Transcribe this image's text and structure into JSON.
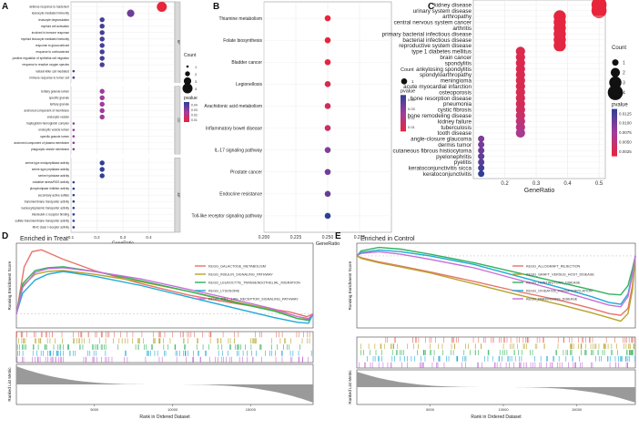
{
  "figure": {
    "panel_letters": [
      "A",
      "B",
      "C",
      "D",
      "E"
    ]
  },
  "chart_data": [
    {
      "id": "A",
      "type": "scatter",
      "kind": "dotplot",
      "xlabel": "GeneRatio",
      "xlim": [
        0.1,
        0.5
      ],
      "xticks": [
        "0.1",
        "0.2",
        "0.3",
        "0.4"
      ],
      "facets": [
        {
          "name": "BP",
          "terms": [
            {
              "label": "defense response to bacterium",
              "x": 0.45,
              "count": 4,
              "p": 0.002
            },
            {
              "label": "leukocyte mediated immunity",
              "x": 0.33,
              "count": 3,
              "p": 0.03
            },
            {
              "label": "leukocyte degranulation",
              "x": 0.22,
              "count": 2,
              "p": 0.036
            },
            {
              "label": "myeloid cell activation",
              "x": 0.22,
              "count": 2,
              "p": 0.036
            },
            {
              "label": "involved in immune response",
              "x": 0.22,
              "count": 2,
              "p": 0.036
            },
            {
              "label": "myeloid leukocyte mediated immunity",
              "x": 0.22,
              "count": 2,
              "p": 0.036
            },
            {
              "label": "response to glucocorticoid",
              "x": 0.22,
              "count": 2,
              "p": 0.036
            },
            {
              "label": "response to corticosteroid",
              "x": 0.22,
              "count": 2,
              "p": 0.036
            },
            {
              "label": "positive regulation of epithelial cell migration",
              "x": 0.22,
              "count": 2,
              "p": 0.036
            },
            {
              "label": "response to reactive oxygen species",
              "x": 0.22,
              "count": 2,
              "p": 0.036
            },
            {
              "label": "natural killer cell mediated",
              "x": 0.11,
              "count": 1,
              "p": 0.036
            },
            {
              "label": "immune response to tumor cell",
              "x": 0.11,
              "count": 1,
              "p": 0.036
            }
          ]
        },
        {
          "name": "CC",
          "terms": [
            {
              "label": "tertiary granule lumen",
              "x": 0.22,
              "count": 2,
              "p": 0.022
            },
            {
              "label": "specific granule",
              "x": 0.22,
              "count": 2,
              "p": 0.022
            },
            {
              "label": "tertiary granule",
              "x": 0.22,
              "count": 2,
              "p": 0.022
            },
            {
              "label": "anchored component of membrane",
              "x": 0.22,
              "count": 2,
              "p": 0.022
            },
            {
              "label": "endocytic vesicle",
              "x": 0.22,
              "count": 2,
              "p": 0.022
            },
            {
              "label": "haptoglobin-hemoglobin complex",
              "x": 0.11,
              "count": 1,
              "p": 0.024
            },
            {
              "label": "endocytic vesicle lumen",
              "x": 0.11,
              "count": 1,
              "p": 0.024
            },
            {
              "label": "specific granule lumen",
              "x": 0.11,
              "count": 1,
              "p": 0.024
            },
            {
              "label": "anchored component of plasma membrane",
              "x": 0.11,
              "count": 1,
              "p": 0.024
            },
            {
              "label": "phagocytic vesicle membrane",
              "x": 0.11,
              "count": 1,
              "p": 0.024
            }
          ]
        },
        {
          "name": "MF",
          "terms": [
            {
              "label": "serine-type endopeptidase activity",
              "x": 0.22,
              "count": 2,
              "p": 0.04
            },
            {
              "label": "serine-type peptidase activity",
              "x": 0.22,
              "count": 2,
              "p": 0.04
            },
            {
              "label": "serine hydrolase activity",
              "x": 0.22,
              "count": 2,
              "p": 0.04
            },
            {
              "label": "oxidative stress/ROS activity",
              "x": 0.11,
              "count": 1,
              "p": 0.04
            },
            {
              "label": "phospholipase inhibitor activity",
              "x": 0.11,
              "count": 1,
              "p": 0.04
            },
            {
              "label": "secondary active sulfate",
              "x": 0.11,
              "count": 1,
              "p": 0.04
            },
            {
              "label": "transmembrane transporter activity",
              "x": 0.11,
              "count": 1,
              "p": 0.04
            },
            {
              "label": "nucleocytoplasmic transporter activity",
              "x": 0.11,
              "count": 1,
              "p": 0.04
            },
            {
              "label": "interleukin-1 receptor binding",
              "x": 0.11,
              "count": 1,
              "p": 0.04
            },
            {
              "label": "sulfate transmembrane transporter activity",
              "x": 0.11,
              "count": 1,
              "p": 0.04
            },
            {
              "label": "MHC class I receptor activity",
              "x": 0.11,
              "count": 1,
              "p": 0.04
            }
          ]
        }
      ],
      "legend": {
        "count_title": "Count",
        "count_values": [
          1,
          2,
          3,
          4
        ],
        "color_title": "pvalue",
        "color_ticks": [
          "0.04",
          "0.03",
          "0.02",
          "0.01"
        ]
      }
    },
    {
      "id": "B",
      "type": "scatter",
      "kind": "dotplot",
      "xlabel": "GeneRatio",
      "xlim": [
        0.2,
        0.3
      ],
      "xticks": [
        "0.200",
        "0.225",
        "0.250",
        "0.275"
      ],
      "terms": [
        {
          "label": "Thiamine metabolism",
          "x": 0.25,
          "count": 1,
          "p": 0.01
        },
        {
          "label": "Folate biosynthesis",
          "x": 0.25,
          "count": 1,
          "p": 0.01
        },
        {
          "label": "Bladder cancer",
          "x": 0.25,
          "count": 1,
          "p": 0.011
        },
        {
          "label": "Legionellosis",
          "x": 0.25,
          "count": 1,
          "p": 0.013
        },
        {
          "label": "Arachidonic acid metabolism",
          "x": 0.25,
          "count": 1,
          "p": 0.015
        },
        {
          "label": "Inflammatory bowel disease",
          "x": 0.25,
          "count": 1,
          "p": 0.017
        },
        {
          "label": "IL-17 signaling pathway",
          "x": 0.25,
          "count": 1,
          "p": 0.03
        },
        {
          "label": "Prostate cancer",
          "x": 0.25,
          "count": 1,
          "p": 0.032
        },
        {
          "label": "Endocrine resistance",
          "x": 0.25,
          "count": 1,
          "p": 0.034
        },
        {
          "label": "Toll-like receptor signaling pathway",
          "x": 0.25,
          "count": 1,
          "p": 0.041
        }
      ],
      "legend": {
        "count_title": "Count",
        "count_values": [
          1
        ],
        "color_title": "pvalue",
        "color_ticks": [
          "0.04",
          "0.03",
          "0.02",
          "0.01"
        ]
      }
    },
    {
      "id": "C",
      "type": "scatter",
      "kind": "dotplot",
      "xlabel": "GeneRatio",
      "xlim": [
        0.1,
        0.52
      ],
      "xticks": [
        "0.2",
        "0.3",
        "0.4",
        "0.5"
      ],
      "terms": [
        {
          "label": "kidney disease",
          "x": 0.5,
          "count": 4,
          "p": 0.0005
        },
        {
          "label": "urinary system disease",
          "x": 0.5,
          "count": 4,
          "p": 0.0005
        },
        {
          "label": "arthropathy",
          "x": 0.375,
          "count": 3,
          "p": 0.0007
        },
        {
          "label": "central nervous system cancer",
          "x": 0.375,
          "count": 3,
          "p": 0.0007
        },
        {
          "label": "arthritis",
          "x": 0.375,
          "count": 3,
          "p": 0.0008
        },
        {
          "label": "primary bacterial infectious disease",
          "x": 0.375,
          "count": 3,
          "p": 0.0008
        },
        {
          "label": "bacterial infectious disease",
          "x": 0.375,
          "count": 3,
          "p": 0.0009
        },
        {
          "label": "reproductive system disease",
          "x": 0.375,
          "count": 3,
          "p": 0.0009
        },
        {
          "label": "type 1 diabetes mellitus",
          "x": 0.25,
          "count": 2,
          "p": 0.0015
        },
        {
          "label": "brain cancer",
          "x": 0.25,
          "count": 2,
          "p": 0.0015
        },
        {
          "label": "spondylitis",
          "x": 0.25,
          "count": 2,
          "p": 0.0016
        },
        {
          "label": "ankylosing spondylitis",
          "x": 0.25,
          "count": 2,
          "p": 0.0016
        },
        {
          "label": "spondyloarthropathy",
          "x": 0.25,
          "count": 2,
          "p": 0.0017
        },
        {
          "label": "meningioma",
          "x": 0.25,
          "count": 2,
          "p": 0.0017
        },
        {
          "label": "acute myocardial infarction",
          "x": 0.25,
          "count": 2,
          "p": 0.0018
        },
        {
          "label": "osteoporosis",
          "x": 0.25,
          "count": 2,
          "p": 0.0019
        },
        {
          "label": "bone resorption disease",
          "x": 0.25,
          "count": 2,
          "p": 0.002
        },
        {
          "label": "pneumonia",
          "x": 0.25,
          "count": 2,
          "p": 0.0022
        },
        {
          "label": "cystic fibrosis",
          "x": 0.25,
          "count": 2,
          "p": 0.0026
        },
        {
          "label": "bone remodeling disease",
          "x": 0.25,
          "count": 2,
          "p": 0.003
        },
        {
          "label": "kidney failure",
          "x": 0.25,
          "count": 2,
          "p": 0.0038
        },
        {
          "label": "tuberculosis",
          "x": 0.25,
          "count": 2,
          "p": 0.0045
        },
        {
          "label": "tooth disease",
          "x": 0.25,
          "count": 2,
          "p": 0.0055
        },
        {
          "label": "angle-closure glaucoma",
          "x": 0.125,
          "count": 1,
          "p": 0.008
        },
        {
          "label": "dermis tumor",
          "x": 0.125,
          "count": 1,
          "p": 0.0085
        },
        {
          "label": "cutaneous fibrous histiocytoma",
          "x": 0.125,
          "count": 1,
          "p": 0.009
        },
        {
          "label": "pyelonephritis",
          "x": 0.125,
          "count": 1,
          "p": 0.0095
        },
        {
          "label": "pyelitis",
          "x": 0.125,
          "count": 1,
          "p": 0.01
        },
        {
          "label": "keratoconjunctivitis sicca",
          "x": 0.125,
          "count": 1,
          "p": 0.011
        },
        {
          "label": "keratoconjunctivitis",
          "x": 0.125,
          "count": 1,
          "p": 0.012
        }
      ],
      "legend": {
        "count_title": "Count",
        "count_values": [
          1,
          2,
          3,
          4
        ],
        "color_title": "pvalue",
        "color_ticks": [
          "0.0125",
          "0.0100",
          "0.0075",
          "0.0050",
          "0.0025"
        ]
      }
    },
    {
      "id": "D",
      "type": "line",
      "kind": "gsea",
      "title": "Enriched in Treat",
      "ylabel_top": "Running Enrichment Score",
      "ylabel_bottom": "Ranked List Metric",
      "xlabel": "Rank in Ordered Dataset",
      "xlim": [
        0,
        19000
      ],
      "xticks": [
        "5000",
        "10000",
        "15000"
      ],
      "ylim": [
        -0.15,
        0.75
      ],
      "series": [
        {
          "name": "KEGG_GALACTOSE_METABOLISM",
          "color": "#e8736a",
          "x": [
            0,
            500,
            1000,
            1600,
            3000,
            5000,
            8000,
            11000,
            14000,
            16000,
            17500,
            18600,
            19000
          ],
          "y": [
            0,
            0.5,
            0.66,
            0.68,
            0.58,
            0.46,
            0.32,
            0.2,
            0.11,
            0.06,
            0.02,
            -0.03,
            0
          ]
        },
        {
          "name": "KEGG_INSULIN_SIGNALING_PATHWAY",
          "color": "#b5a42c",
          "x": [
            0,
            400,
            1200,
            2000,
            3000,
            5000,
            8000,
            11000,
            14000,
            16500,
            18000,
            18700,
            19000
          ],
          "y": [
            0,
            0.3,
            0.42,
            0.45,
            0.46,
            0.42,
            0.34,
            0.24,
            0.13,
            0.04,
            -0.05,
            -0.06,
            0
          ]
        },
        {
          "name": "KEGG_LEUKOCYTE_TRANSENDOTHELIAL_MIGRATION",
          "color": "#2eb35a",
          "x": [
            0,
            400,
            1200,
            2000,
            3000,
            5000,
            8000,
            11000,
            14000,
            16500,
            18000,
            18700,
            19000
          ],
          "y": [
            0,
            0.32,
            0.46,
            0.49,
            0.5,
            0.45,
            0.35,
            0.24,
            0.12,
            0.03,
            -0.05,
            -0.07,
            0
          ]
        },
        {
          "name": "KEGG_LYSOSOME",
          "color": "#20a9d8",
          "x": [
            0,
            400,
            1200,
            2000,
            3000,
            5000,
            8000,
            11000,
            14000,
            16500,
            18000,
            18700,
            19000
          ],
          "y": [
            0,
            0.22,
            0.36,
            0.42,
            0.45,
            0.4,
            0.3,
            0.18,
            0.06,
            -0.04,
            -0.09,
            -0.1,
            0
          ]
        },
        {
          "name": "KEGG_TOLL_LIKE_RECEPTOR_SIGNALING_PATHWAY",
          "color": "#c66fd8",
          "x": [
            0,
            400,
            1200,
            2000,
            3000,
            5000,
            8000,
            11000,
            14000,
            16500,
            18000,
            18700,
            19000
          ],
          "y": [
            0,
            0.28,
            0.44,
            0.48,
            0.49,
            0.45,
            0.37,
            0.26,
            0.15,
            0.05,
            -0.03,
            -0.05,
            0
          ]
        }
      ]
    },
    {
      "id": "E",
      "type": "line",
      "kind": "gsea",
      "title": "Enriched in Control",
      "ylabel_top": "Running Enrichment Score",
      "ylabel_bottom": "Ranked List Metric",
      "xlabel": "Rank in Ordered Dataset",
      "xlim": [
        0,
        19000
      ],
      "xticks": [
        "5000",
        "10000",
        "15000"
      ],
      "ylim": [
        -0.85,
        0.15
      ],
      "series": [
        {
          "name": "KEGG_ALLOGRAFT_REJECTION",
          "color": "#e8736a",
          "x": [
            0,
            300,
            1500,
            3000,
            5000,
            8000,
            11000,
            14000,
            16000,
            17200,
            18000,
            18500,
            18800,
            19000
          ],
          "y": [
            0,
            -0.02,
            -0.07,
            -0.12,
            -0.19,
            -0.3,
            -0.42,
            -0.53,
            -0.62,
            -0.68,
            -0.7,
            -0.62,
            -0.35,
            0
          ]
        },
        {
          "name": "KEGG_GRAFT_VERSUS_HOST_DISEASE",
          "color": "#b5a42c",
          "x": [
            0,
            300,
            1500,
            3000,
            5000,
            8000,
            11000,
            14000,
            16000,
            17200,
            18000,
            18500,
            18800,
            19000
          ],
          "y": [
            0,
            -0.03,
            -0.08,
            -0.13,
            -0.2,
            -0.33,
            -0.46,
            -0.58,
            -0.67,
            -0.73,
            -0.77,
            -0.68,
            -0.4,
            0
          ]
        },
        {
          "name": "KEGG_HUNTINGTONS_DISEASE",
          "color": "#2eb35a",
          "x": [
            0,
            300,
            1500,
            3000,
            5000,
            8000,
            11000,
            14000,
            16000,
            17200,
            18000,
            18500,
            18800,
            19000
          ],
          "y": [
            0,
            0.06,
            0.1,
            0.08,
            0.02,
            -0.08,
            -0.2,
            -0.32,
            -0.4,
            -0.45,
            -0.46,
            -0.35,
            -0.15,
            0
          ]
        },
        {
          "name": "KEGG_OXIDATIVE_PHOSPHORYLATION",
          "color": "#20a9d8",
          "x": [
            0,
            300,
            1500,
            3000,
            5000,
            8000,
            11000,
            14000,
            16000,
            17200,
            18000,
            18500,
            18800,
            19000
          ],
          "y": [
            0,
            0.04,
            0.07,
            0.05,
            0.0,
            -0.1,
            -0.24,
            -0.38,
            -0.48,
            -0.55,
            -0.57,
            -0.45,
            -0.2,
            0
          ]
        },
        {
          "name": "KEGG_PARKINSONS_DISEASE",
          "color": "#c66fd8",
          "x": [
            0,
            300,
            1500,
            3000,
            5000,
            8000,
            11000,
            14000,
            16000,
            17200,
            18000,
            18500,
            18800,
            19000
          ],
          "y": [
            0,
            0.03,
            0.05,
            0.02,
            -0.04,
            -0.14,
            -0.28,
            -0.42,
            -0.52,
            -0.58,
            -0.6,
            -0.48,
            -0.22,
            0
          ]
        }
      ]
    }
  ]
}
